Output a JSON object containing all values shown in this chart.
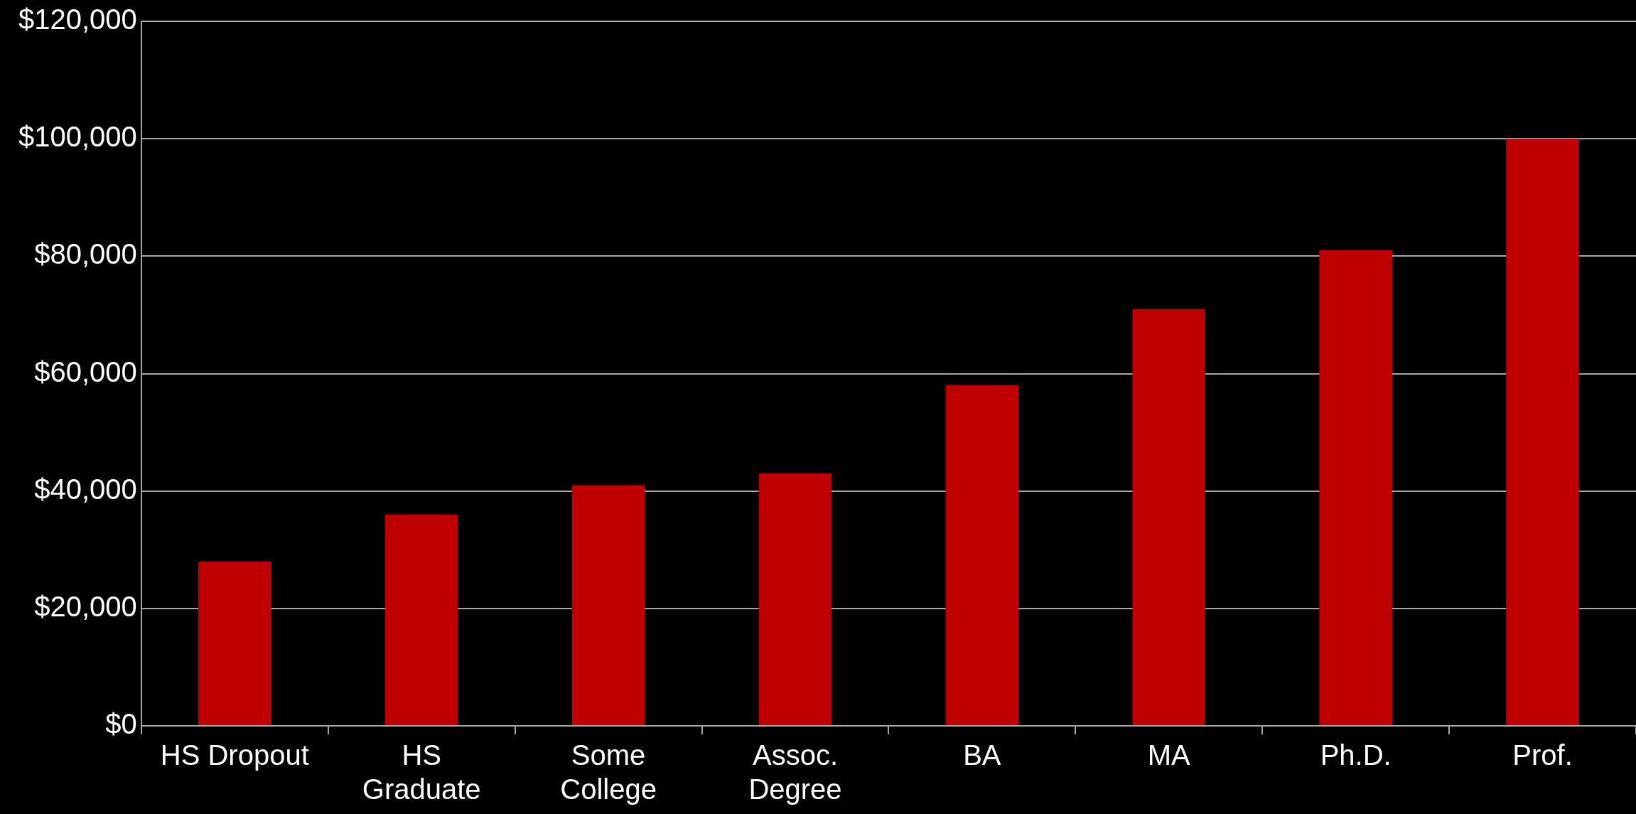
{
  "chart_data": {
    "type": "bar",
    "categories": [
      "HS Dropout",
      "HS\nGraduate",
      "Some\nCollege",
      "Assoc.\nDegree",
      "BA",
      "MA",
      "Ph.D.",
      "Prof."
    ],
    "values": [
      28000,
      36000,
      41000,
      43000,
      58000,
      71000,
      81000,
      100000
    ],
    "color": "#c00000",
    "ylim": [
      0,
      120000
    ],
    "yticks": [
      {
        "value": 0,
        "label": "$0"
      },
      {
        "value": 20000,
        "label": "$20,000"
      },
      {
        "value": 40000,
        "label": "$40,000"
      },
      {
        "value": 60000,
        "label": "$60,000"
      },
      {
        "value": 80000,
        "label": "$80,000"
      },
      {
        "value": 100000,
        "label": "$100,000"
      },
      {
        "value": 120000,
        "label": "$120,000"
      }
    ],
    "grid": "y"
  }
}
